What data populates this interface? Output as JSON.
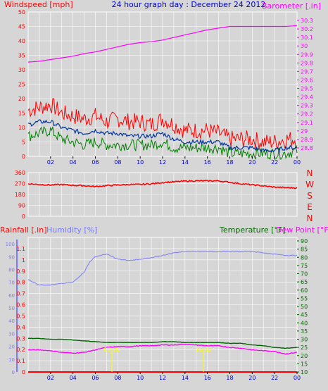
{
  "title": "24 hour graph day : December 24 2012",
  "colors": {
    "background": "#d6d6d6",
    "plot_bg": "#d6d6d6",
    "grid": "#ffffff",
    "wind": "#ff0000",
    "gust_mid": "#003399",
    "wind_low": "#008000",
    "barometer": "#ff00ff",
    "direction": "#ff0000",
    "humidity": "#7b7bff",
    "temperature": "#006600",
    "dewpoint": "#ff00ff",
    "rain": "#ff0000",
    "title": "#0000cc",
    "sun": "#ffff00"
  },
  "panel1": {
    "left_label": "Windspeed [mph]",
    "right_label": "Barometer [.in]"
  },
  "panel2": {
    "direction_letters": [
      "N",
      "W",
      "S",
      "E",
      "N"
    ]
  },
  "panel3": {
    "rain_label": "Rainfall [.in]",
    "humidity_label": "Humidity [%]",
    "temp_label": "Temperature [°F]",
    "dew_label": "Dew Point [°F]",
    "sunrise": "07:20",
    "sunset": "16:03"
  },
  "x_ticks": [
    "02",
    "04",
    "06",
    "08",
    "10",
    "12",
    "14",
    "16",
    "18",
    "20",
    "22",
    "00"
  ],
  "chart_data": [
    {
      "type": "line",
      "title": "24 hour graph day : December 24 2012",
      "xlabel": "",
      "ylabel": "Windspeed [mph]",
      "ylabel_right": "Barometer [.in]",
      "xlim": [
        0,
        24
      ],
      "ylim": [
        0,
        50
      ],
      "ylim_right": [
        28.7,
        30.4
      ],
      "left_ticks": [
        0,
        5,
        10,
        15,
        20,
        25,
        30,
        35,
        40,
        45,
        50
      ],
      "right_ticks": [
        28.8,
        28.9,
        29,
        29.1,
        29.2,
        29.3,
        29.4,
        29.5,
        29.6,
        29.7,
        29.8,
        29.9,
        30,
        30.1,
        30.2,
        30.3
      ],
      "series": [
        {
          "name": "Windspeed [mph]",
          "role": "gust",
          "x": [
            0,
            1,
            2,
            3,
            4,
            5,
            6,
            7,
            8,
            9,
            10,
            11,
            12,
            13,
            14,
            15,
            16,
            17,
            18,
            19,
            20,
            21,
            22,
            23,
            24
          ],
          "y": [
            16,
            17,
            18,
            15,
            14,
            13,
            14,
            12,
            13,
            12,
            12,
            11,
            13,
            11,
            9,
            9,
            9,
            8,
            6,
            6,
            6,
            5,
            5,
            6,
            6
          ]
        },
        {
          "role": "average",
          "x": [
            0,
            1,
            2,
            3,
            4,
            5,
            6,
            7,
            8,
            9,
            10,
            11,
            12,
            13,
            14,
            15,
            16,
            17,
            18,
            19,
            20,
            21,
            22,
            23,
            24
          ],
          "y": [
            11,
            12,
            12,
            10,
            9,
            8,
            9,
            8,
            8,
            7,
            7,
            7,
            8,
            6,
            5,
            5,
            5,
            5,
            3,
            3,
            3,
            2,
            2,
            3,
            3
          ]
        },
        {
          "role": "low",
          "x": [
            0,
            1,
            2,
            3,
            4,
            5,
            6,
            7,
            8,
            9,
            10,
            11,
            12,
            13,
            14,
            15,
            16,
            17,
            18,
            19,
            20,
            21,
            22,
            23,
            24
          ],
          "y": [
            7,
            8,
            9,
            6,
            5,
            4,
            5,
            4,
            4,
            4,
            4,
            4,
            5,
            3,
            3,
            3,
            3,
            3,
            1,
            1,
            1,
            1,
            1,
            1,
            2
          ]
        },
        {
          "name": "Barometer [.in]",
          "axis": "right",
          "x": [
            0,
            1,
            2,
            3,
            4,
            5,
            6,
            7,
            8,
            9,
            10,
            11,
            12,
            13,
            14,
            15,
            16,
            17,
            18,
            19,
            20,
            21,
            22,
            23,
            24
          ],
          "y": [
            29.81,
            29.82,
            29.84,
            29.86,
            29.88,
            29.91,
            29.93,
            29.96,
            29.99,
            30.02,
            30.04,
            30.05,
            30.07,
            30.1,
            30.13,
            30.16,
            30.19,
            30.21,
            30.23,
            30.23,
            30.23,
            30.23,
            30.23,
            30.23,
            30.24
          ]
        }
      ]
    },
    {
      "type": "line",
      "ylabel": "",
      "xlim": [
        0,
        24
      ],
      "ylim": [
        0,
        360
      ],
      "left_ticks": [
        0,
        90,
        180,
        270,
        360
      ],
      "series": [
        {
          "role": "wind direction",
          "x": [
            0,
            1,
            2,
            3,
            4,
            5,
            6,
            7,
            8,
            9,
            10,
            11,
            12,
            13,
            14,
            15,
            16,
            17,
            18,
            19,
            20,
            21,
            22,
            23,
            24
          ],
          "y": [
            268,
            262,
            258,
            262,
            255,
            252,
            245,
            252,
            258,
            262,
            262,
            268,
            278,
            284,
            290,
            292,
            292,
            292,
            280,
            268,
            260,
            250,
            240,
            236,
            234
          ]
        }
      ]
    },
    {
      "type": "line",
      "xlabel": "",
      "xlim": [
        0,
        24
      ],
      "ylim": [
        0,
        1.2
      ],
      "left_ticks": [
        0,
        0.1,
        0.2,
        0.3,
        0.4,
        0.5,
        0.6,
        0.7,
        0.8,
        0.9,
        1,
        1.1
      ],
      "humidity_ticks": [
        0,
        10,
        20,
        30,
        40,
        50,
        60,
        70,
        80,
        90,
        100
      ],
      "humidity_lim": [
        0,
        105
      ],
      "right_ticks": [
        10,
        15,
        20,
        25,
        30,
        35,
        40,
        45,
        50,
        55,
        60,
        65,
        70,
        75,
        80,
        85,
        90
      ],
      "right_lim": [
        10,
        90
      ],
      "series": [
        {
          "name": "Rainfall [.in]",
          "x": [
            0,
            24
          ],
          "y": [
            0,
            0
          ]
        },
        {
          "name": "Humidity [%]",
          "axis": "humidity",
          "x": [
            0,
            1,
            2,
            3,
            4,
            5,
            5.5,
            6,
            7,
            8,
            9,
            10,
            11,
            12,
            13,
            14,
            15,
            16,
            17,
            18,
            19,
            20,
            21,
            22,
            23,
            24
          ],
          "y": [
            72,
            68,
            68,
            69,
            70,
            78,
            86,
            90,
            92,
            88,
            87,
            88,
            89,
            91,
            93,
            94,
            94,
            94,
            94,
            94,
            94,
            94,
            93,
            92,
            91,
            91
          ]
        },
        {
          "name": "Temperature [°F]",
          "axis": "right",
          "x": [
            0,
            1,
            2,
            3,
            4,
            5,
            6,
            7,
            8,
            9,
            10,
            11,
            12,
            13,
            14,
            15,
            16,
            17,
            18,
            19,
            20,
            21,
            22,
            23,
            24
          ],
          "y": [
            30.5,
            30.5,
            30,
            30,
            29.5,
            29,
            28.5,
            28,
            28,
            28,
            28,
            28,
            28.5,
            28.5,
            28,
            28,
            28,
            28,
            27.5,
            27.5,
            26.5,
            26,
            25,
            24.5,
            25
          ]
        },
        {
          "name": "Dew Point [°F]",
          "axis": "right",
          "x": [
            0,
            1,
            2,
            3,
            4,
            5,
            6,
            7,
            8,
            9,
            10,
            11,
            12,
            13,
            14,
            15,
            16,
            17,
            18,
            19,
            20,
            21,
            22,
            23,
            24
          ],
          "y": [
            23.5,
            23.5,
            23,
            22,
            21.5,
            22,
            23.5,
            25,
            25.5,
            25.5,
            26,
            26,
            26.5,
            26.5,
            27,
            26.5,
            26,
            26,
            25,
            24.5,
            23.5,
            23,
            22.5,
            21,
            22
          ]
        }
      ]
    }
  ]
}
